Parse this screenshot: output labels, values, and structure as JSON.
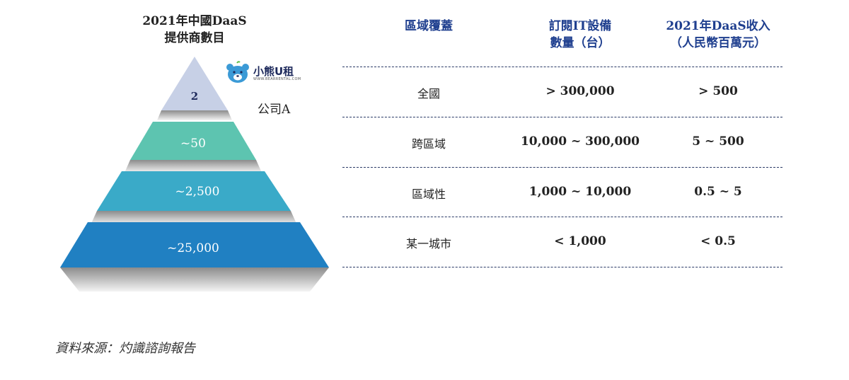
{
  "pyramid": {
    "title_line1": "2021年中國DaaS",
    "title_line2": "提供商數目",
    "tiers": [
      {
        "label": "2",
        "color": "#c7d0e6"
      },
      {
        "label": "~50",
        "color": "#5dc4b0"
      },
      {
        "label": "~2,500",
        "color": "#3aaac8"
      },
      {
        "label": "~25,000",
        "color": "#2080c2"
      }
    ],
    "logo": {
      "name": "小熊U租",
      "sub": "WWW.BEARRENTAL.COM",
      "icon": "bear-logo-icon"
    },
    "company_label": "公司A"
  },
  "table": {
    "headers": {
      "region": "區域覆蓋",
      "devices_line1": "訂閱IT設備",
      "devices_line2": "數量（台）",
      "revenue_line1": "2021年DaaS收入",
      "revenue_line2": "（人民幣百萬元）"
    },
    "rows": [
      {
        "region": "全國",
        "devices": "> 300,000",
        "revenue": "> 500"
      },
      {
        "region": "跨區域",
        "devices": "10,000 ~ 300,000",
        "revenue": "5 ~ 500"
      },
      {
        "region": "區域性",
        "devices": "1,000 ~ 10,000",
        "revenue": "0.5 ~ 5"
      },
      {
        "region": "某一城市",
        "devices": "< 1,000",
        "revenue": "< 0.5"
      }
    ]
  },
  "source": "資料來源：灼識諮詢報告"
}
